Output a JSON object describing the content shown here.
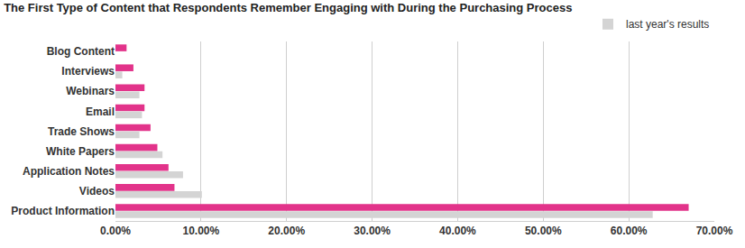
{
  "chart_data": {
    "type": "bar",
    "orientation": "horizontal",
    "title": "The First Type of Content that Respondents Remember Engaging with During the Purchasing Process",
    "categories": [
      "Blog Content",
      "Interviews",
      "Webinars",
      "Email",
      "Trade Shows",
      "White Papers",
      "Application Notes",
      "Videos",
      "Product Information"
    ],
    "series": [
      {
        "color": "#e2338a",
        "values": [
          1.3,
          2.1,
          3.4,
          3.4,
          4.1,
          4.9,
          6.2,
          6.9,
          67.0
        ]
      },
      {
        "name": "last year's results",
        "color": "#d4d4d4",
        "values": [
          null,
          0.8,
          2.8,
          3.1,
          2.8,
          5.5,
          7.9,
          10.1,
          62.8
        ]
      }
    ],
    "xlim": [
      0,
      70
    ],
    "xticks": [
      {
        "value": 0,
        "label": "0.00%"
      },
      {
        "value": 10,
        "label": "10.00%"
      },
      {
        "value": 20,
        "label": "20.00%"
      },
      {
        "value": 30,
        "label": "30.00%"
      },
      {
        "value": 40,
        "label": "40.00%"
      },
      {
        "value": 50,
        "label": "50.00%"
      },
      {
        "value": 60,
        "label": "60.00%"
      },
      {
        "value": 70,
        "label": "70.00%"
      }
    ],
    "grid": true,
    "legend": "top right"
  }
}
